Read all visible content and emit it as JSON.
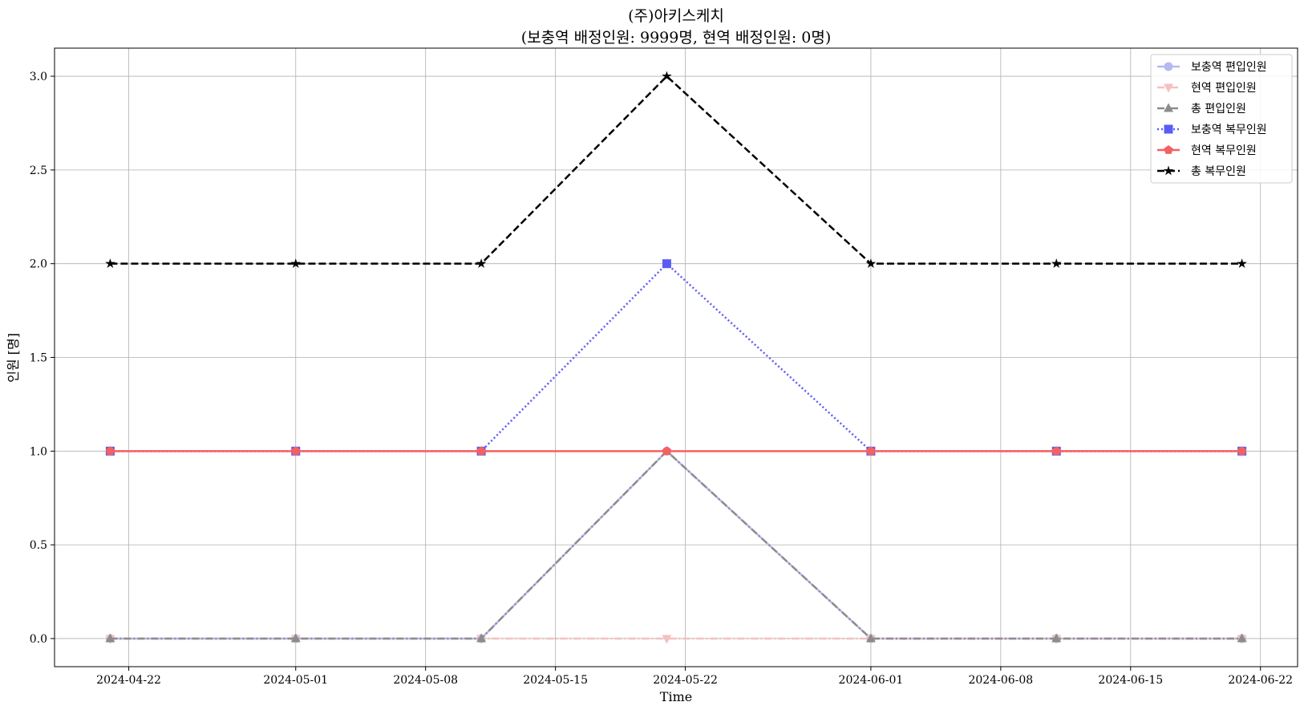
{
  "chart_data": {
    "type": "line",
    "title": "(주)아키스케치",
    "subtitle": "(보충역 배정인원: 9999명, 현역 배정인원: 0명)",
    "xlabel": "Time",
    "ylabel": "인원 [명]",
    "x": [
      "2024-04-21",
      "2024-05-01",
      "2024-05-11",
      "2024-05-21",
      "2024-06-01",
      "2024-06-11",
      "2024-06-21"
    ],
    "xlim": [
      "2024-04-18",
      "2024-06-24"
    ],
    "ylim": [
      -0.15,
      3.15
    ],
    "xticks": [
      "2024-04-22",
      "2024-05-01",
      "2024-05-08",
      "2024-05-15",
      "2024-05-22",
      "2024-06-01",
      "2024-06-08",
      "2024-06-15",
      "2024-06-22"
    ],
    "yticks": [
      "0.0",
      "0.5",
      "1.0",
      "1.5",
      "2.0",
      "2.5",
      "3.0"
    ],
    "grid": true,
    "legend_position": "top-right",
    "series": [
      {
        "name": "보충역 편입인원",
        "values": [
          0,
          0,
          0,
          1,
          0,
          0,
          0
        ],
        "color": "#b8b8f0",
        "linestyle": "solid",
        "marker": "circle"
      },
      {
        "name": "현역 편입인원",
        "values": [
          0,
          0,
          0,
          0,
          0,
          0,
          0
        ],
        "color": "#f4c0c0",
        "linestyle": "dashdot",
        "marker": "triangle-down"
      },
      {
        "name": "총 편입인원",
        "values": [
          0,
          0,
          0,
          1,
          0,
          0,
          0
        ],
        "color": "#8c8c8c",
        "linestyle": "dashdot",
        "marker": "triangle-up"
      },
      {
        "name": "보충역 복무인원",
        "values": [
          1,
          1,
          1,
          2,
          1,
          1,
          1
        ],
        "color": "#5c5cf5",
        "linestyle": "dotted",
        "marker": "square"
      },
      {
        "name": "현역 복무인원",
        "values": [
          1,
          1,
          1,
          1,
          1,
          1,
          1
        ],
        "color": "#f56060",
        "linestyle": "solid",
        "marker": "pentagon"
      },
      {
        "name": "총 복무인원",
        "values": [
          2,
          2,
          2,
          3,
          2,
          2,
          2
        ],
        "color": "#000000",
        "linestyle": "dashed",
        "marker": "star"
      }
    ]
  }
}
